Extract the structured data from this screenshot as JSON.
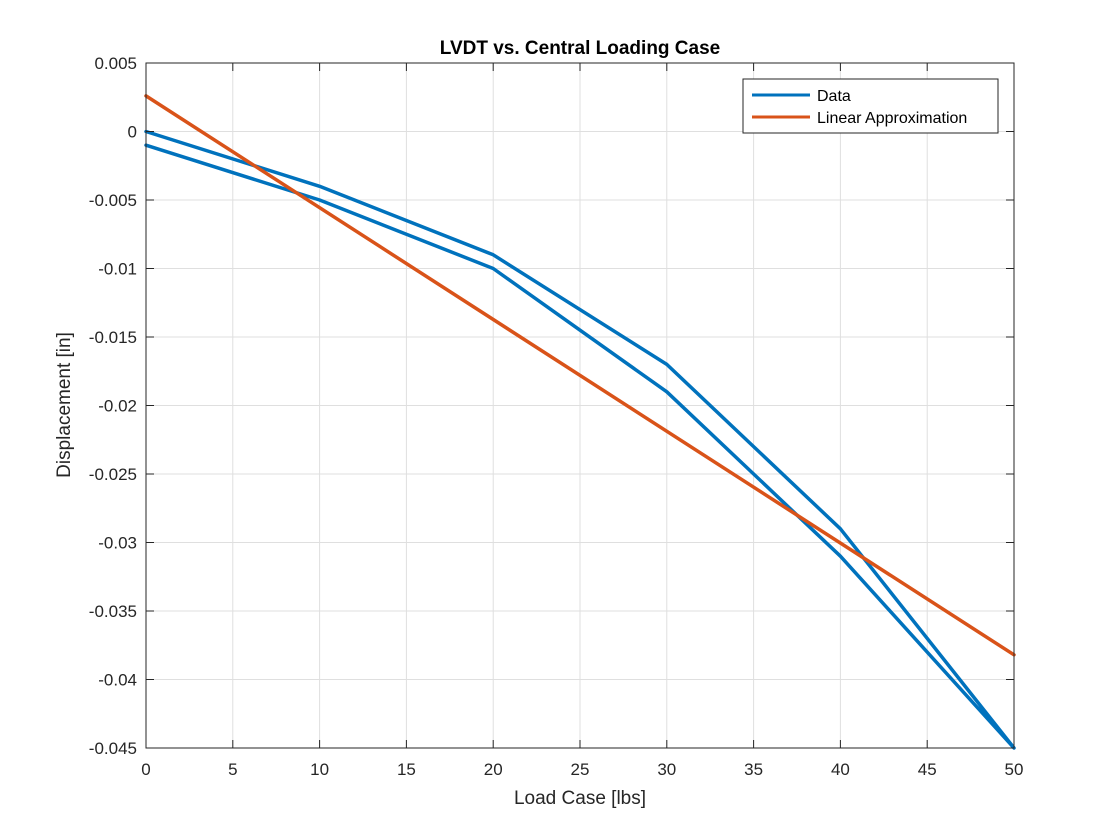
{
  "chart_data": {
    "type": "line",
    "title": "LVDT vs. Central Loading Case",
    "xlabel": "Load Case [lbs]",
    "ylabel": "Displacement [in]",
    "xlim": [
      0,
      50
    ],
    "ylim": [
      -0.045,
      0.005
    ],
    "xticks": [
      0,
      5,
      10,
      15,
      20,
      25,
      30,
      35,
      40,
      45,
      50
    ],
    "xtick_labels": [
      "0",
      "5",
      "10",
      "15",
      "20",
      "25",
      "30",
      "35",
      "40",
      "45",
      "50"
    ],
    "yticks": [
      0.005,
      0,
      -0.005,
      -0.01,
      -0.015,
      -0.02,
      -0.025,
      -0.03,
      -0.035,
      -0.04,
      -0.045
    ],
    "ytick_labels": [
      "0.005",
      "0",
      "-0.005",
      "-0.01",
      "-0.015",
      "-0.02",
      "-0.025",
      "-0.03",
      "-0.035",
      "-0.04",
      "-0.045"
    ],
    "grid": true,
    "legend_position": "top-right",
    "series": [
      {
        "name": "Data",
        "color": "#0072BD",
        "x": [
          0,
          10,
          20,
          30,
          40,
          50,
          40,
          30,
          20,
          10,
          0
        ],
        "y": [
          0,
          -0.004,
          -0.009,
          -0.017,
          -0.029,
          -0.045,
          -0.031,
          -0.019,
          -0.01,
          -0.005,
          -0.001
        ]
      },
      {
        "name": "Linear Approximation",
        "color": "#D95319",
        "x": [
          0,
          50
        ],
        "y": [
          0.0026,
          -0.0382
        ]
      }
    ]
  }
}
